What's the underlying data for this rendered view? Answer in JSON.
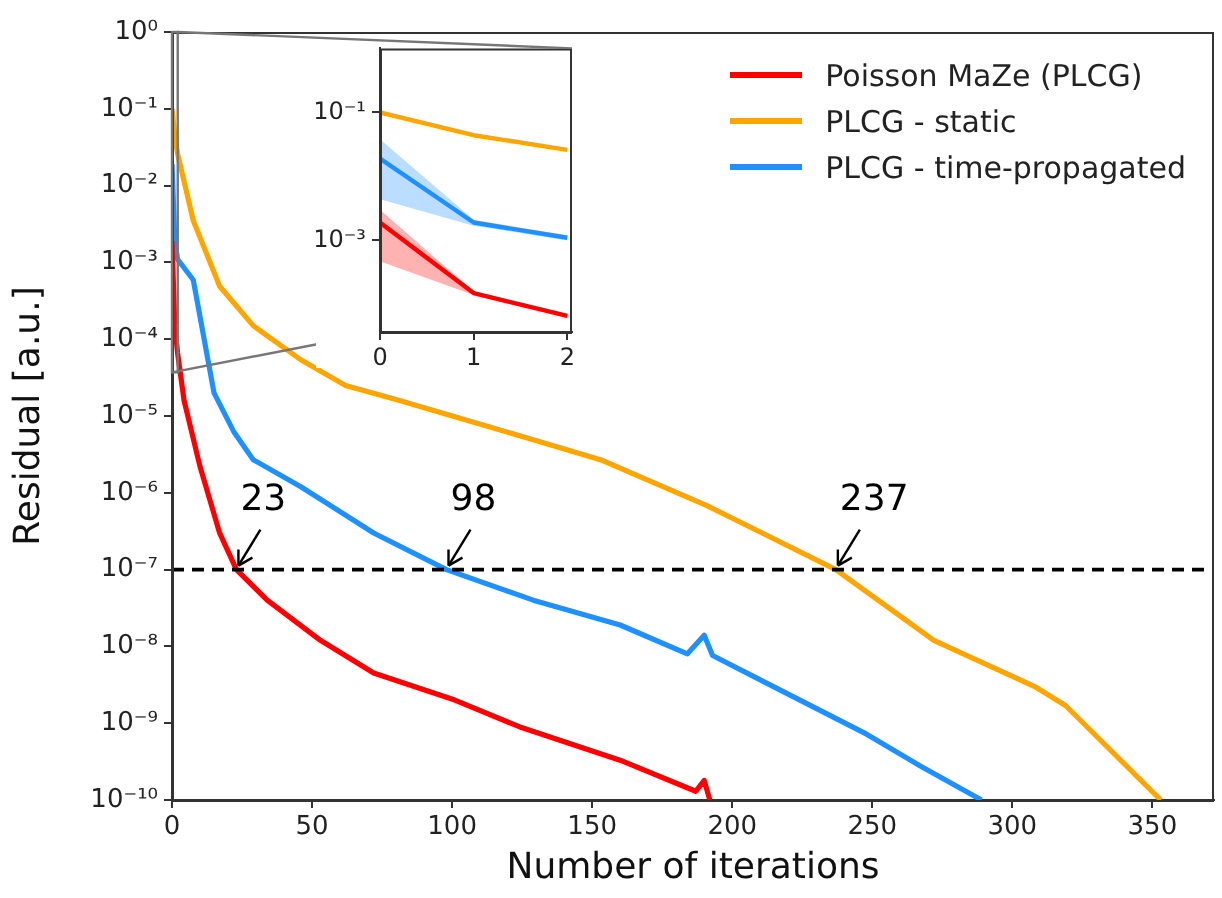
{
  "chart_data": [
    {
      "type": "line",
      "xlabel": "Number of iterations",
      "ylabel": "Residual [a.u.]",
      "series": [
        {
          "name": "Poisson MaZe (PLCG)",
          "color": "#ff0000",
          "x": [
            0,
            1,
            2,
            4.3,
            10,
            17,
            23,
            34,
            53,
            72,
            101,
            124,
            160,
            187,
            190,
            192
          ],
          "values": [
            0.0019,
            0.00015,
            6.6e-05,
            1.6e-05,
            2.2e-06,
            3e-07,
            1e-07,
            4e-08,
            1.2e-08,
            4.5e-09,
            2e-09,
            9e-10,
            3.3e-10,
            1.3e-10,
            1.8e-10,
            1e-10
          ]
        },
        {
          "name": "PLCG - static",
          "color": "#ffa500",
          "x": [
            0,
            1,
            2,
            7.6,
            17,
            29,
            46,
            62,
            81,
            105,
            129,
            153,
            191,
            237,
            272,
            308,
            319,
            353
          ],
          "values": [
            0.1,
            0.044,
            0.026,
            0.0035,
            0.00049,
            0.00015,
            5.4e-05,
            2.5e-05,
            1.6e-05,
            8.9e-06,
            4.9e-06,
            2.7e-06,
            6.8e-07,
            1e-07,
            1.2e-08,
            3e-09,
            1.7e-09,
            1e-10
          ]
        },
        {
          "name": "PLCG - time-propagated",
          "color": "#1e90ff",
          "x": [
            0,
            1,
            2,
            7.6,
            15,
            22,
            29,
            46,
            72,
            98,
            129,
            160,
            184,
            190,
            193,
            248,
            267,
            289
          ],
          "values": [
            0.019,
            0.0019,
            0.0011,
            0.00059,
            2e-05,
            6.3e-06,
            2.7e-06,
            1.2e-06,
            3e-07,
            1e-07,
            4e-08,
            1.9e-08,
            8e-09,
            1.4e-08,
            7.6e-09,
            7.2e-10,
            2.8e-10,
            1e-10
          ]
        }
      ],
      "log": "y",
      "xlim": [
        0,
        372
      ],
      "xticks": [
        0,
        50,
        100,
        150,
        200,
        250,
        300,
        350
      ],
      "ylim": [
        1e-10,
        1
      ],
      "yticks": [
        {
          "value": 1,
          "label": "10⁰"
        },
        {
          "value": 0.1,
          "label": "10⁻¹"
        },
        {
          "value": 0.01,
          "label": "10⁻²"
        },
        {
          "value": 0.001,
          "label": "10⁻³"
        },
        {
          "value": 0.0001,
          "label": "10⁻⁴"
        },
        {
          "value": 1e-05,
          "label": "10⁻⁵"
        },
        {
          "value": 1e-06,
          "label": "10⁻⁶"
        },
        {
          "value": 1e-07,
          "label": "10⁻⁷"
        },
        {
          "value": 1e-08,
          "label": "10⁻⁸"
        },
        {
          "value": 1e-09,
          "label": "10⁻⁹"
        },
        {
          "value": 1e-10,
          "label": "10⁻¹⁰"
        }
      ],
      "ref_lines": [
        {
          "axis": "y",
          "value": 1e-07,
          "color": "#000000",
          "line_style": "dashed"
        }
      ],
      "annotations": [
        {
          "text": "23",
          "x": 23,
          "y": 1e-07
        },
        {
          "text": "98",
          "x": 98,
          "y": 1e-07
        },
        {
          "text": "237",
          "x": 237,
          "y": 1e-07
        }
      ],
      "legend": "top right",
      "grid": false,
      "marker": "none",
      "line_style": "solid"
    },
    {
      "type": "line",
      "series": [
        {
          "color": "#ff0000",
          "x": [
            0,
            1,
            2
          ],
          "values": [
            0.0019,
            0.00015,
            6.6e-05
          ],
          "lower": [
            0.00047,
            0.00014,
            6.3e-05
          ],
          "upper": [
            0.003,
            0.00016,
            6.9e-05
          ]
        },
        {
          "color": "#ffa500",
          "x": [
            0,
            1,
            2
          ],
          "values": [
            0.1,
            0.044,
            0.026
          ]
        },
        {
          "color": "#1e90ff",
          "x": [
            0,
            1,
            2
          ],
          "values": [
            0.019,
            0.0019,
            0.0011
          ],
          "lower": [
            0.0044,
            0.0017,
            0.001
          ],
          "upper": [
            0.038,
            0.0021,
            0.0012
          ]
        }
      ],
      "log": "y",
      "xlim": [
        0,
        2.05
      ],
      "xticks": [
        0,
        1,
        2
      ],
      "ylim": [
        3.7e-05,
        1
      ],
      "yticks": [
        {
          "value": 0.1,
          "label": "10⁻¹"
        },
        {
          "value": 0.001,
          "label": "10⁻³"
        }
      ],
      "grid": false,
      "marker": "none",
      "line_style": "solid"
    }
  ]
}
